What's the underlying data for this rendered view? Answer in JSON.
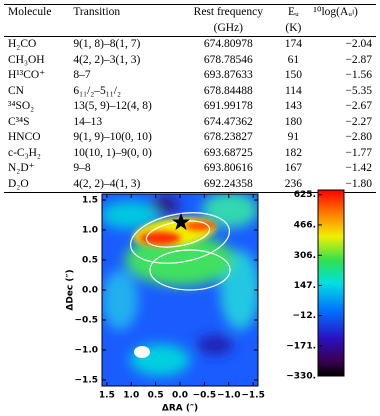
{
  "table": {
    "header": [
      [
        "Molecule",
        ""
      ],
      [
        "Transition",
        ""
      ],
      [
        "Rest frequency",
        "(GHz)"
      ],
      [
        "Eᵤ",
        "(K)"
      ],
      [
        "¹⁰log(Aᵤₗ)",
        ""
      ]
    ],
    "rows": [
      [
        "H₂CO",
        "9(1, 8)–8(1, 7)",
        "674.80978",
        "174",
        "−2.04"
      ],
      [
        "CH₃OH",
        "4(2, 2)–3(1, 3)",
        "678.78546",
        "61",
        "−2.87"
      ],
      [
        "H¹³CO⁺",
        "8–7",
        "693.87633",
        "150",
        "−1.56"
      ],
      [
        "CN",
        "6₁₁/₂–5₁₁/₂",
        "678.84488",
        "114",
        "−5.35"
      ],
      [
        "³⁴SO₂",
        "13(5, 9)–12(4, 8)",
        "691.99178",
        "143",
        "−2.67"
      ],
      [
        "C³⁴S",
        "14–13",
        "674.47362",
        "180",
        "−2.27"
      ],
      [
        "HNCO",
        "9(1, 9)–10(0, 10)",
        "678.23827",
        "91",
        "−2.80"
      ],
      [
        "c-C₃H₂",
        "10(10, 1)–9(0, 0)",
        "693.68725",
        "182",
        "−1.77"
      ],
      [
        "N₂D⁺",
        "9–8",
        "693.80616",
        "167",
        "−1.42"
      ],
      [
        "D₂O",
        "4(2, 2)–4(1, 3)",
        "692.24358",
        "236",
        "−1.80"
      ]
    ]
  },
  "map": {
    "xlabel": "ΔRA (″)",
    "ylabel": "ΔDec (″)",
    "xlim": [
      1.6,
      -1.6
    ],
    "ylim": [
      -1.6,
      1.6
    ],
    "xticks": [
      {
        "value": 1.5,
        "label": "1.5"
      },
      {
        "value": 1,
        "label": "1.0"
      },
      {
        "value": 0.5,
        "label": "0.5"
      },
      {
        "value": 0,
        "label": "0.0"
      },
      {
        "value": -0.5,
        "label": "−0.5"
      },
      {
        "value": -1,
        "label": "−1.0"
      },
      {
        "value": -1.5,
        "label": "−1.5"
      }
    ],
    "yticks": [
      {
        "value": -1.5,
        "label": "−1.5"
      },
      {
        "value": -1,
        "label": "−1.0"
      },
      {
        "value": -0.5,
        "label": "−0.5"
      },
      {
        "value": 0,
        "label": "0.0"
      },
      {
        "value": 0.5,
        "label": "0.5"
      },
      {
        "value": 1,
        "label": "1.0"
      },
      {
        "value": 1.5,
        "label": "1.5"
      }
    ],
    "clim": [
      -330,
      650
    ],
    "cticks": [
      {
        "value": 625,
        "label": "625."
      },
      {
        "value": 466,
        "label": "466."
      },
      {
        "value": 306,
        "label": "306."
      },
      {
        "value": 147,
        "label": "147."
      },
      {
        "value": -12,
        "label": "−12."
      },
      {
        "value": -171,
        "label": "−171."
      },
      {
        "value": -330,
        "label": "−330."
      }
    ]
  }
}
